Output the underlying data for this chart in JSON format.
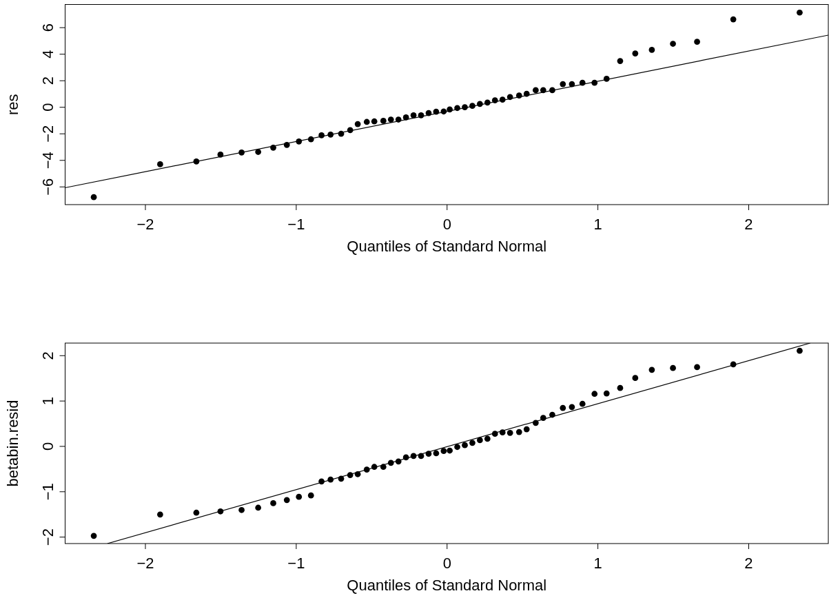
{
  "chart_data": [
    {
      "type": "scatter",
      "xlabel": "Quantiles of Standard Normal",
      "ylabel": "res",
      "xlim": [
        -2.53,
        2.53
      ],
      "ylim": [
        -7.36,
        7.72
      ],
      "xticks": [
        -2,
        -1,
        0,
        1,
        2
      ],
      "yticks": [
        -6,
        -4,
        -2,
        0,
        2,
        4,
        6
      ],
      "grid": false,
      "series": [
        {
          "marker": "circle",
          "color": "#000000",
          "x": [
            -2.34,
            -1.9,
            -1.66,
            -1.5,
            -1.36,
            -1.25,
            -1.15,
            -1.06,
            -0.98,
            -0.9,
            -0.83,
            -0.77,
            -0.7,
            -0.64,
            -0.59,
            -0.53,
            -0.48,
            -0.42,
            -0.37,
            -0.32,
            -0.27,
            -0.22,
            -0.17,
            -0.12,
            -0.07,
            -0.02,
            0.02,
            0.07,
            0.12,
            0.17,
            0.22,
            0.27,
            0.32,
            0.37,
            0.42,
            0.48,
            0.53,
            0.59,
            0.64,
            0.7,
            0.77,
            0.83,
            0.9,
            0.98,
            1.06,
            1.15,
            1.25,
            1.36,
            1.5,
            1.66,
            1.9,
            2.34
          ],
          "values": [
            -6.8,
            -4.32,
            -4.11,
            -3.59,
            -3.43,
            -3.39,
            -3.07,
            -2.86,
            -2.6,
            -2.44,
            -2.14,
            -2.08,
            -2.02,
            -1.75,
            -1.29,
            -1.13,
            -1.09,
            -1.05,
            -0.95,
            -0.95,
            -0.79,
            -0.63,
            -0.63,
            -0.46,
            -0.36,
            -0.34,
            -0.19,
            -0.08,
            -0.02,
            0.08,
            0.23,
            0.33,
            0.5,
            0.55,
            0.75,
            0.86,
            0.99,
            1.26,
            1.26,
            1.26,
            1.72,
            1.72,
            1.82,
            1.82,
            2.12,
            3.46,
            4.03,
            4.3,
            4.76,
            4.91,
            6.6,
            7.11
          ]
        },
        {
          "type": "line",
          "color": "#000000",
          "x": [
            -2.53,
            2.53
          ],
          "values": [
            -6.09,
            5.41
          ]
        }
      ]
    },
    {
      "type": "scatter",
      "xlabel": "Quantiles of Standard Normal",
      "ylabel": "betabin.resid",
      "xlim": [
        -2.53,
        2.53
      ],
      "ylim": [
        -2.15,
        2.27
      ],
      "xticks": [
        -2,
        -1,
        0,
        1,
        2
      ],
      "yticks": [
        -2,
        -1,
        0,
        1,
        2
      ],
      "grid": false,
      "series": [
        {
          "marker": "circle",
          "color": "#000000",
          "x": [
            -2.34,
            -1.9,
            -1.66,
            -1.5,
            -1.36,
            -1.25,
            -1.15,
            -1.06,
            -0.98,
            -0.9,
            -0.83,
            -0.77,
            -0.7,
            -0.64,
            -0.59,
            -0.53,
            -0.48,
            -0.42,
            -0.37,
            -0.32,
            -0.27,
            -0.22,
            -0.17,
            -0.12,
            -0.07,
            -0.02,
            0.02,
            0.07,
            0.12,
            0.17,
            0.22,
            0.27,
            0.32,
            0.37,
            0.42,
            0.48,
            0.53,
            0.59,
            0.64,
            0.7,
            0.77,
            0.83,
            0.9,
            0.98,
            1.06,
            1.15,
            1.25,
            1.36,
            1.5,
            1.66,
            1.9,
            2.34
          ],
          "values": [
            -1.98,
            -1.51,
            -1.47,
            -1.44,
            -1.41,
            -1.36,
            -1.26,
            -1.19,
            -1.12,
            -1.09,
            -0.78,
            -0.74,
            -0.72,
            -0.64,
            -0.62,
            -0.52,
            -0.46,
            -0.46,
            -0.37,
            -0.34,
            -0.25,
            -0.22,
            -0.22,
            -0.17,
            -0.16,
            -0.11,
            -0.1,
            -0.02,
            0.02,
            0.07,
            0.13,
            0.16,
            0.27,
            0.3,
            0.29,
            0.31,
            0.37,
            0.51,
            0.62,
            0.69,
            0.84,
            0.86,
            0.93,
            1.15,
            1.16,
            1.28,
            1.5,
            1.68,
            1.72,
            1.74,
            1.8,
            2.1
          ]
        },
        {
          "type": "line",
          "color": "#000000",
          "x": [
            -2.25,
            2.41
          ],
          "values": [
            -2.15,
            2.27
          ]
        }
      ]
    }
  ]
}
